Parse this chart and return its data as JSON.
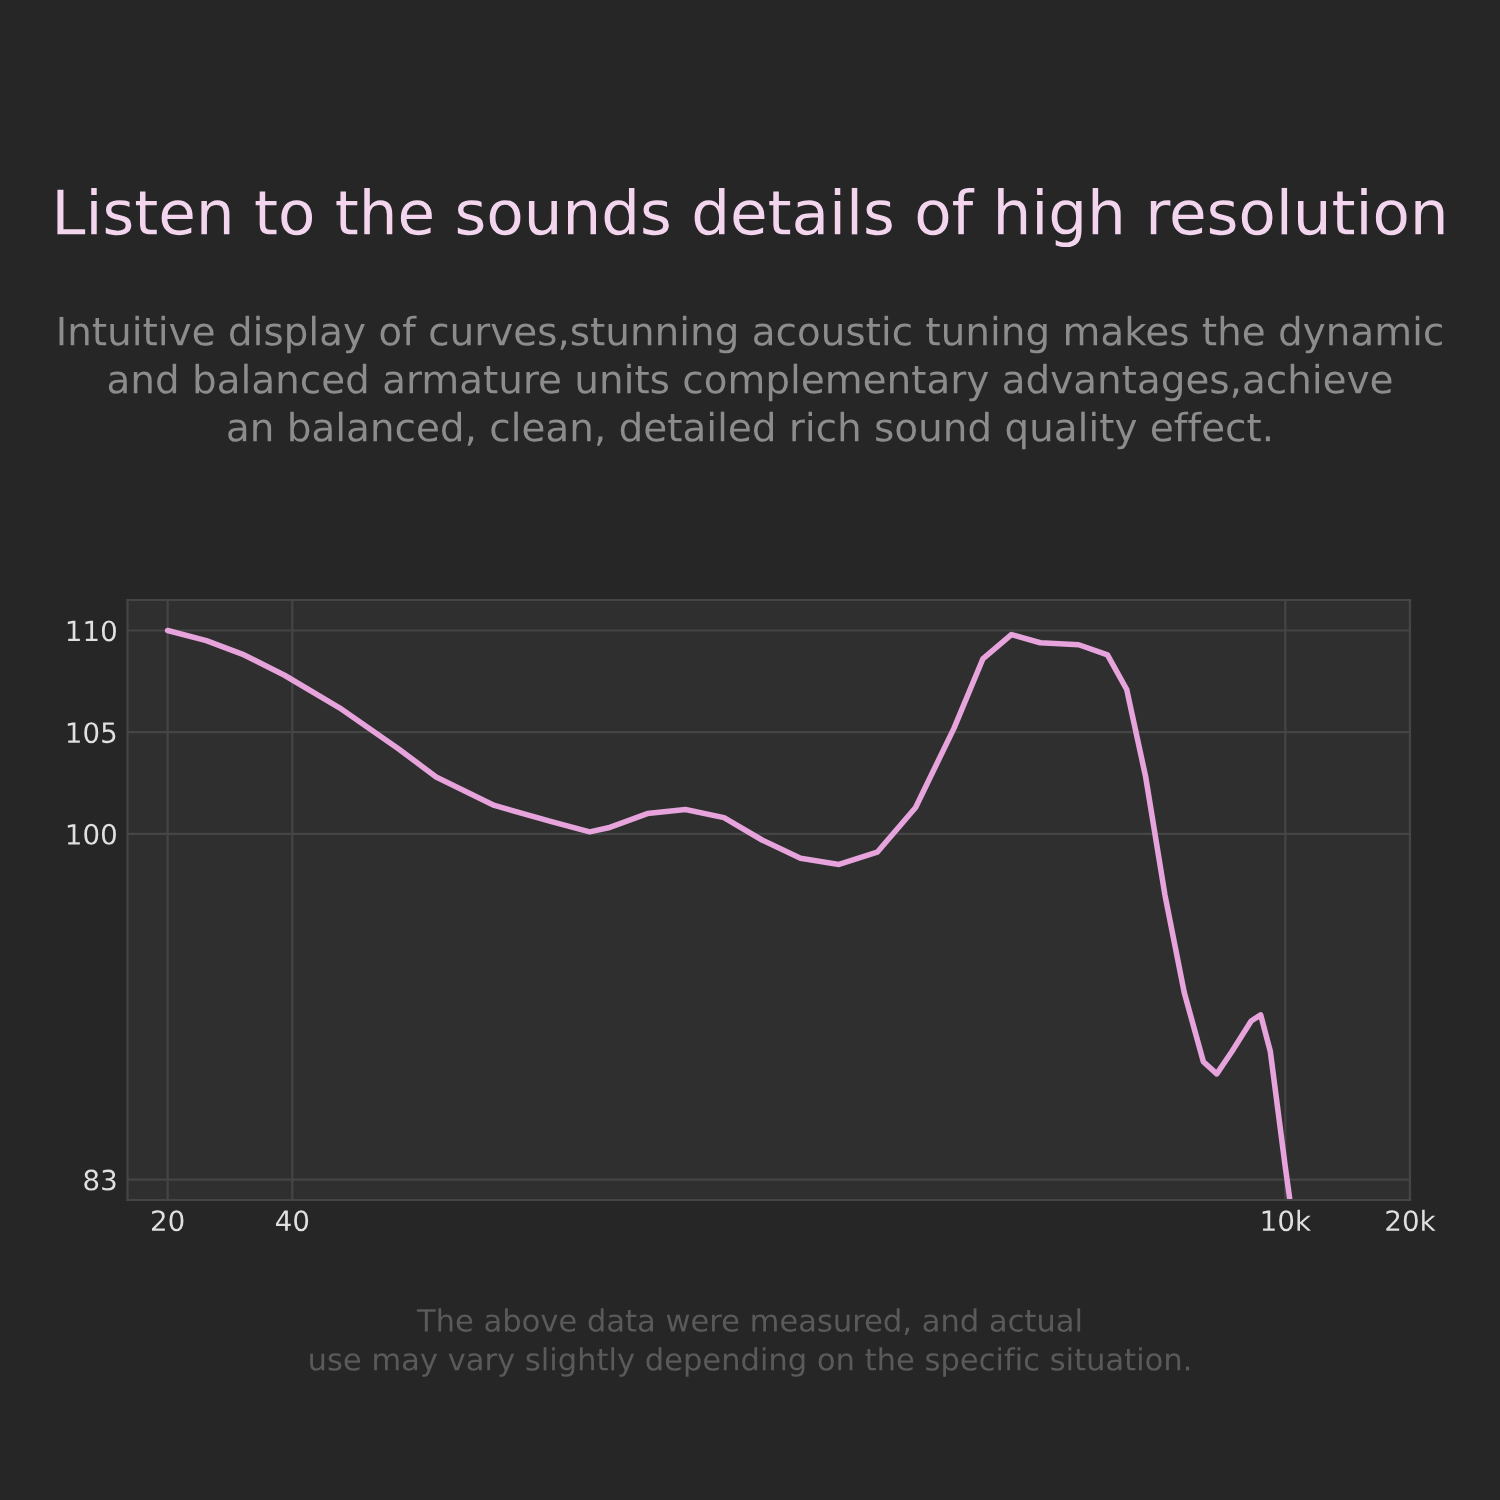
{
  "chart_data": {
    "type": "line",
    "title": "Listen to the sounds details of high resolution",
    "subtitle": "Intuitive display of curves,stunning acoustic tuning makes the dynamic\nand balanced armature units complementary advantages,achieve\nan balanced, clean, detailed rich sound quality effect.",
    "annotations": [
      "The above data were measured, and actual\nuse may vary slightly depending on the specific situation."
    ],
    "x": [
      20,
      24.8,
      30.6,
      38.3,
      52,
      72,
      89,
      123,
      169,
      209,
      232,
      288,
      356,
      441,
      545,
      675,
      836,
      1034,
      1280,
      1585,
      1860,
      2180,
      2560,
      3170,
      3720,
      4140,
      4600,
      5120,
      5700,
      6340,
      6830,
      7430,
      8270,
      8720,
      9200,
      10000,
      10240
    ],
    "series": [
      {
        "color": "#e7a3dc",
        "values": [
          110,
          109.5,
          108.8,
          107.8,
          106.2,
          104.2,
          102.8,
          101.4,
          100.6,
          100.1,
          100.3,
          101,
          101.2,
          100.8,
          99.7,
          98.8,
          98.5,
          99.1,
          101.3,
          105.2,
          108.6,
          109.8,
          109.4,
          109.3,
          108.8,
          107.1,
          102.8,
          97,
          92.2,
          88.8,
          88.2,
          89.3,
          90.8,
          91.1,
          89.3,
          83.6,
          82.1
        ]
      }
    ],
    "log": "x",
    "xlim": [
      16,
      20000
    ],
    "ylim": [
      82,
      111.5
    ],
    "xticks": [
      20,
      40,
      {
        "value": 10000,
        "label": "10k"
      },
      {
        "value": 20000,
        "label": "20k"
      }
    ],
    "yticks": [
      83,
      100,
      105,
      110
    ],
    "grid": true
  }
}
